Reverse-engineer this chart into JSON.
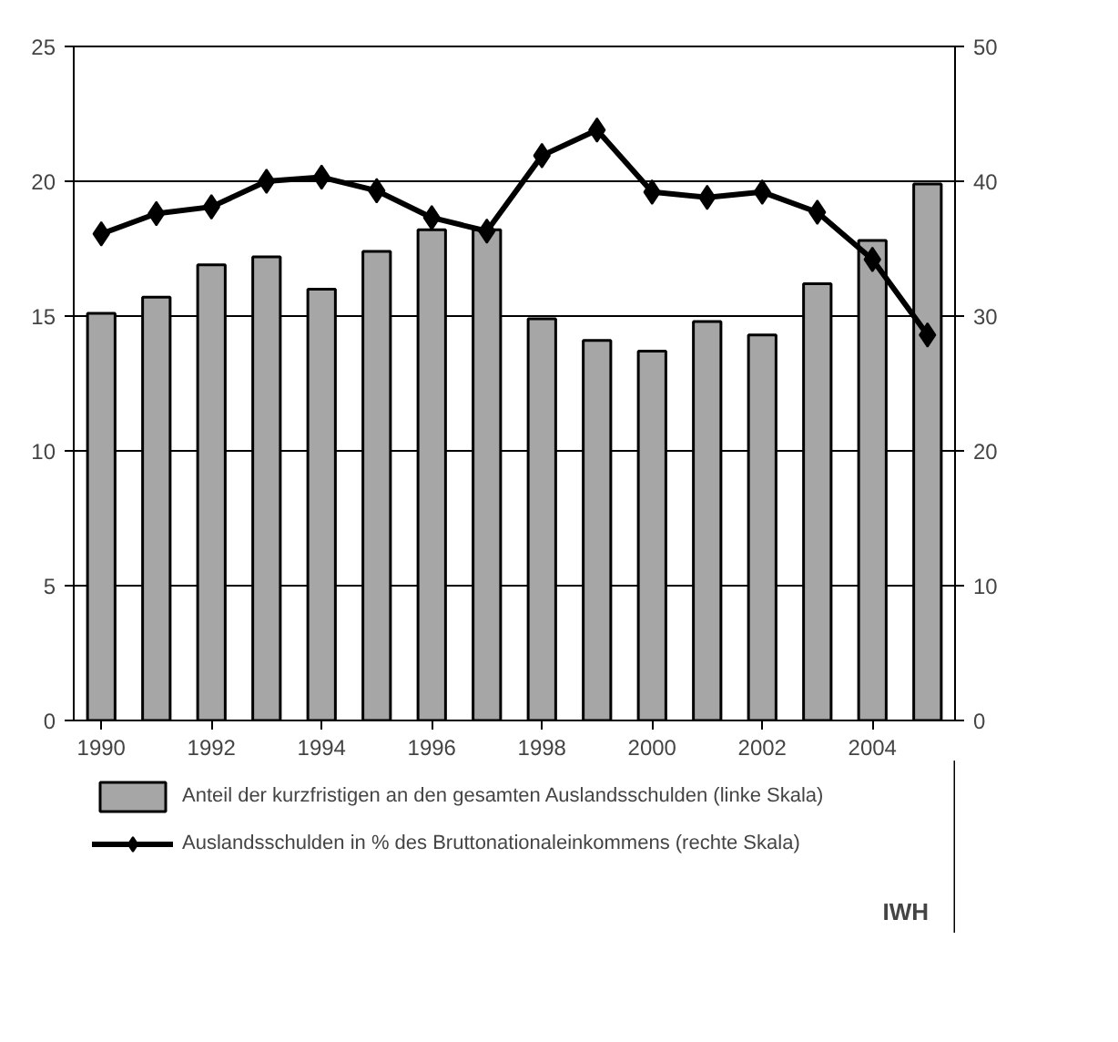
{
  "chart_data": {
    "type": "bar",
    "x": [
      1990,
      1991,
      1992,
      1993,
      1994,
      1995,
      1996,
      1997,
      1998,
      1999,
      2000,
      2001,
      2002,
      2003,
      2004,
      2005
    ],
    "xlim": [
      1989.5,
      2005.5
    ],
    "xticks": [
      1990,
      1992,
      1994,
      1996,
      1998,
      2000,
      2002,
      2004
    ],
    "ylim": [
      0,
      25
    ],
    "yticks": [
      0,
      5,
      10,
      15,
      20,
      25
    ],
    "y2lim": [
      0,
      50
    ],
    "y2ticks": [
      0,
      10,
      20,
      30,
      40,
      50
    ],
    "series": [
      {
        "name": "Anteil der kurzfristigen an den gesamten Auslandsschulden (linke Skala)",
        "color": "#a6a6a6",
        "values": [
          15.1,
          15.7,
          16.9,
          17.2,
          16.0,
          17.4,
          18.2,
          18.2,
          14.9,
          14.1,
          13.7,
          14.8,
          14.3,
          16.2,
          17.8,
          19.9
        ]
      },
      {
        "name": "Auslandsschulden in % des Bruttonationaleinkommens (rechte Skala)",
        "type": "line",
        "axis": "y2",
        "color": "#000000",
        "marker": "diamond",
        "values": [
          36.1,
          37.6,
          38.1,
          40.0,
          40.3,
          39.3,
          37.3,
          36.3,
          41.9,
          43.8,
          39.2,
          38.8,
          39.2,
          37.7,
          34.2,
          28.6
        ]
      }
    ],
    "grid": "y",
    "legend": "bottom",
    "annotations": [
      "IWH"
    ]
  }
}
